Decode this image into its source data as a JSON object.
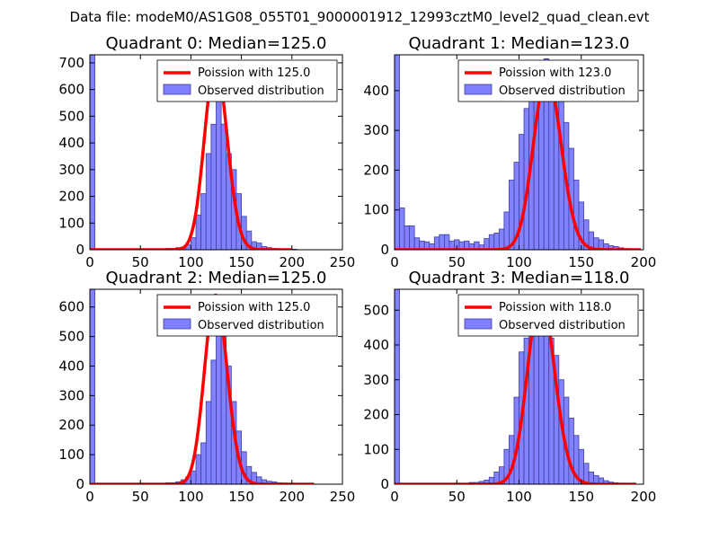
{
  "figure": {
    "suptitle": "Data file: modeM0/AS1G08_055T01_9000001912_12993cztM0_level2_quad_clean.evt",
    "colors": {
      "model": "#ff0000",
      "bars": "#7f7fff",
      "bar_edge": "#3f3f9f"
    }
  },
  "chart_data": [
    {
      "type": "bar",
      "title": "Quadrant 0: Median=125.0",
      "xlim": [
        0,
        250
      ],
      "ylim": [
        0,
        730
      ],
      "xticks": [
        0,
        50,
        100,
        150,
        200,
        250
      ],
      "yticks": [
        0,
        100,
        200,
        300,
        400,
        500,
        600,
        700
      ],
      "bin_width": 5,
      "bins": [
        [
          0,
          730
        ],
        [
          75,
          5
        ],
        [
          80,
          5
        ],
        [
          85,
          8
        ],
        [
          90,
          10
        ],
        [
          95,
          20
        ],
        [
          100,
          45
        ],
        [
          105,
          130
        ],
        [
          110,
          210
        ],
        [
          115,
          360
        ],
        [
          120,
          470
        ],
        [
          125,
          570
        ],
        [
          130,
          470
        ],
        [
          135,
          360
        ],
        [
          140,
          300
        ],
        [
          145,
          210
        ],
        [
          150,
          125
        ],
        [
          155,
          70
        ],
        [
          160,
          30
        ],
        [
          165,
          25
        ],
        [
          170,
          12
        ],
        [
          175,
          8
        ],
        [
          180,
          5
        ],
        [
          185,
          4
        ],
        [
          190,
          3
        ],
        [
          195,
          2
        ],
        [
          200,
          2
        ]
      ],
      "model": {
        "label": "Poission with 125.0",
        "mu": 125.0,
        "scale": 700,
        "x_range": [
          0,
          200
        ]
      },
      "observed_label": "Observed distribution",
      "legend": "upper right"
    },
    {
      "type": "bar",
      "title": "Quadrant 1: Median=123.0",
      "xlim": [
        0,
        200
      ],
      "ylim": [
        0,
        490
      ],
      "xticks": [
        0,
        50,
        100,
        150,
        200
      ],
      "yticks": [
        0,
        100,
        200,
        300,
        400
      ],
      "bin_width": 4,
      "bins": [
        [
          0,
          490
        ],
        [
          4,
          105
        ],
        [
          8,
          60
        ],
        [
          12,
          60
        ],
        [
          16,
          30
        ],
        [
          20,
          22
        ],
        [
          24,
          20
        ],
        [
          28,
          15
        ],
        [
          32,
          32
        ],
        [
          36,
          38
        ],
        [
          40,
          38
        ],
        [
          44,
          22
        ],
        [
          48,
          25
        ],
        [
          52,
          20
        ],
        [
          56,
          22
        ],
        [
          60,
          15
        ],
        [
          64,
          20
        ],
        [
          68,
          12
        ],
        [
          72,
          28
        ],
        [
          76,
          38
        ],
        [
          80,
          42
        ],
        [
          84,
          52
        ],
        [
          88,
          95
        ],
        [
          92,
          175
        ],
        [
          96,
          220
        ],
        [
          100,
          290
        ],
        [
          104,
          355
        ],
        [
          108,
          420
        ],
        [
          112,
          470
        ],
        [
          116,
          450
        ],
        [
          120,
          480
        ],
        [
          124,
          450
        ],
        [
          128,
          440
        ],
        [
          132,
          380
        ],
        [
          136,
          320
        ],
        [
          140,
          255
        ],
        [
          144,
          175
        ],
        [
          148,
          120
        ],
        [
          152,
          75
        ],
        [
          156,
          45
        ],
        [
          160,
          30
        ],
        [
          164,
          25
        ],
        [
          168,
          15
        ],
        [
          172,
          10
        ],
        [
          176,
          8
        ],
        [
          180,
          5
        ],
        [
          184,
          3
        ],
        [
          188,
          2
        ]
      ],
      "model": {
        "label": "Poission with 123.0",
        "mu": 123.0,
        "scale": 440,
        "x_range": [
          0,
          198
        ]
      },
      "observed_label": "Observed distribution",
      "legend": "upper right"
    },
    {
      "type": "bar",
      "title": "Quadrant 2: Median=125.0",
      "xlim": [
        0,
        250
      ],
      "ylim": [
        0,
        660
      ],
      "xticks": [
        0,
        50,
        100,
        150,
        200,
        250
      ],
      "yticks": [
        0,
        100,
        200,
        300,
        400,
        500,
        600
      ],
      "bin_width": 5,
      "bins": [
        [
          0,
          660
        ],
        [
          75,
          5
        ],
        [
          80,
          5
        ],
        [
          85,
          8
        ],
        [
          90,
          15
        ],
        [
          95,
          25
        ],
        [
          100,
          45
        ],
        [
          105,
          100
        ],
        [
          110,
          140
        ],
        [
          115,
          280
        ],
        [
          120,
          420
        ],
        [
          125,
          570
        ],
        [
          130,
          540
        ],
        [
          135,
          400
        ],
        [
          140,
          280
        ],
        [
          145,
          180
        ],
        [
          150,
          110
        ],
        [
          155,
          60
        ],
        [
          160,
          40
        ],
        [
          165,
          25
        ],
        [
          170,
          15
        ],
        [
          175,
          10
        ],
        [
          180,
          8
        ],
        [
          185,
          5
        ],
        [
          190,
          4
        ],
        [
          195,
          3
        ],
        [
          200,
          2
        ],
        [
          205,
          2
        ],
        [
          210,
          1
        ],
        [
          215,
          1
        ]
      ],
      "model": {
        "label": "Poission with 125.0",
        "mu": 125.0,
        "scale": 640,
        "x_range": [
          0,
          222
        ]
      },
      "observed_label": "Observed distribution",
      "legend": "upper right"
    },
    {
      "type": "bar",
      "title": "Quadrant 3: Median=118.0",
      "xlim": [
        0,
        200
      ],
      "ylim": [
        0,
        560
      ],
      "xticks": [
        0,
        50,
        100,
        150,
        200
      ],
      "yticks": [
        0,
        100,
        200,
        300,
        400,
        500
      ],
      "bin_width": 4,
      "bins": [
        [
          0,
          560
        ],
        [
          60,
          5
        ],
        [
          64,
          5
        ],
        [
          68,
          8
        ],
        [
          72,
          12
        ],
        [
          76,
          20
        ],
        [
          80,
          35
        ],
        [
          84,
          50
        ],
        [
          88,
          100
        ],
        [
          92,
          140
        ],
        [
          96,
          250
        ],
        [
          100,
          380
        ],
        [
          104,
          420
        ],
        [
          108,
          480
        ],
        [
          112,
          540
        ],
        [
          116,
          520
        ],
        [
          120,
          430
        ],
        [
          124,
          420
        ],
        [
          128,
          370
        ],
        [
          132,
          300
        ],
        [
          136,
          250
        ],
        [
          140,
          190
        ],
        [
          144,
          140
        ],
        [
          148,
          100
        ],
        [
          152,
          60
        ],
        [
          156,
          35
        ],
        [
          160,
          25
        ],
        [
          164,
          18
        ],
        [
          168,
          10
        ],
        [
          172,
          6
        ],
        [
          176,
          4
        ],
        [
          180,
          2
        ],
        [
          184,
          2
        ],
        [
          188,
          1
        ]
      ],
      "model": {
        "label": "Poission with 118.0",
        "mu": 118.0,
        "scale": 540,
        "x_range": [
          0,
          194
        ]
      },
      "observed_label": "Observed distribution",
      "legend": "upper right"
    }
  ]
}
